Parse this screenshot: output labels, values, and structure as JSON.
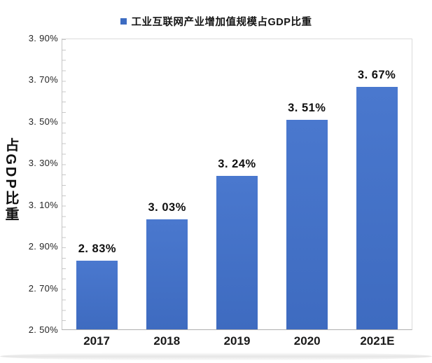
{
  "legend": {
    "label": "工业互联网产业增加值规模占GDP比重"
  },
  "y_axis_title": "占GDP比重",
  "chart_data": {
    "type": "bar",
    "title": "",
    "legend": [
      "工业互联网产业增加值规模占GDP比重"
    ],
    "legend_position": "top-center",
    "categories": [
      "2017",
      "2018",
      "2019",
      "2020",
      "2021E"
    ],
    "values": [
      2.83,
      3.03,
      3.24,
      3.51,
      3.67
    ],
    "data_labels": [
      "2. 83%",
      "3. 03%",
      "3. 24%",
      "3. 51%",
      "3. 67%"
    ],
    "xlabel": "",
    "ylabel": "占GDP比重",
    "ylim": [
      2.5,
      3.9
    ],
    "y_tick_step": 0.2,
    "y_minor_tick_step": 0.05,
    "y_ticks": [
      {
        "value": 3.9,
        "label": "3. 90%"
      },
      {
        "value": 3.7,
        "label": "3. 70%"
      },
      {
        "value": 3.5,
        "label": "3. 50%"
      },
      {
        "value": 3.3,
        "label": "3. 30%"
      },
      {
        "value": 3.1,
        "label": "3. 10%"
      },
      {
        "value": 2.9,
        "label": "2. 90%"
      },
      {
        "value": 2.7,
        "label": "2. 70%"
      },
      {
        "value": 2.5,
        "label": "2. 50%"
      }
    ],
    "grid": false,
    "colors": {
      "bar_top": "#4A78CE",
      "bar_bottom": "#3E6BC0",
      "legend_marker": "#3D6CC2",
      "axis_border": "#DBDBDB",
      "text": "#141414"
    }
  }
}
